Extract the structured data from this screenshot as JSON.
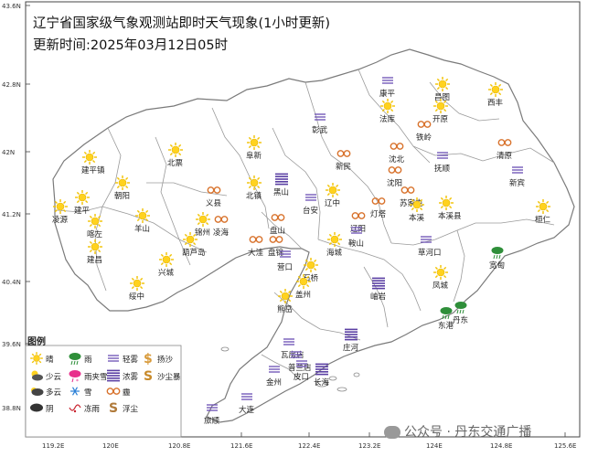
{
  "title": "辽宁省国家级气象观测站即时天气现象(1小时更新)",
  "update_time": "更新时间:2025年03月12日05时",
  "legend_title": "图例",
  "legend": [
    {
      "label": "晴",
      "icon": "sunny-icon"
    },
    {
      "label": "少云",
      "icon": "few-clouds-icon"
    },
    {
      "label": "多云",
      "icon": "partly-cloudy-icon"
    },
    {
      "label": "阴",
      "icon": "overcast-icon"
    },
    {
      "label": "雨",
      "icon": "rain-icon"
    },
    {
      "label": "雨夹雪",
      "icon": "sleet-icon"
    },
    {
      "label": "雪",
      "icon": "snow-icon"
    },
    {
      "label": "冻雨",
      "icon": "freezing-rain-icon"
    },
    {
      "label": "轻雾",
      "icon": "mist-icon"
    },
    {
      "label": "浓雾",
      "icon": "dense-fog-icon"
    },
    {
      "label": "霾",
      "icon": "haze-icon"
    },
    {
      "label": "浮尘",
      "icon": "floating-dust-icon"
    },
    {
      "label": "扬沙",
      "icon": "blowing-sand-icon"
    },
    {
      "label": "沙尘暴",
      "icon": "sandstorm-icon"
    }
  ],
  "lat_labels": [
    "43.6N",
    "42.8N",
    "42N",
    "41.2N",
    "40.4N",
    "39.6N",
    "38.8N"
  ],
  "lon_labels": [
    "119.2E",
    "120E",
    "120.8E",
    "121.6E",
    "122.4E",
    "123.2E",
    "124E",
    "124.8E",
    "125.6E"
  ],
  "stations": [
    {
      "name": "建平镇",
      "type": "sunny"
    },
    {
      "name": "朝阳",
      "type": "sunny"
    },
    {
      "name": "北票",
      "type": "sunny"
    },
    {
      "name": "阜新",
      "type": "sunny"
    },
    {
      "name": "彰武",
      "type": "mist"
    },
    {
      "name": "康平",
      "type": "mist"
    },
    {
      "name": "法库",
      "type": "sunny"
    },
    {
      "name": "昌图",
      "type": "sunny"
    },
    {
      "name": "开原",
      "type": "sunny"
    },
    {
      "name": "西丰",
      "type": "sunny"
    },
    {
      "name": "铁岭",
      "type": "haze"
    },
    {
      "name": "沈北",
      "type": "haze"
    },
    {
      "name": "清原",
      "type": "haze"
    },
    {
      "name": "抚顺",
      "type": "mist"
    },
    {
      "name": "新宾",
      "type": "mist"
    },
    {
      "name": "新民",
      "type": "haze"
    },
    {
      "name": "沈阳",
      "type": "haze"
    },
    {
      "name": "苏家屯",
      "type": "haze"
    },
    {
      "name": "灯塔",
      "type": "haze"
    },
    {
      "name": "本溪",
      "type": "sunny"
    },
    {
      "name": "本溪县",
      "type": "sunny"
    },
    {
      "name": "桓仁",
      "type": "sunny"
    },
    {
      "name": "辽阳",
      "type": "haze"
    },
    {
      "name": "辽中",
      "type": "sunny"
    },
    {
      "name": "台安",
      "type": "mist"
    },
    {
      "name": "黑山",
      "type": "dense-fog"
    },
    {
      "name": "义县",
      "type": "haze"
    },
    {
      "name": "北镇",
      "type": "sunny"
    },
    {
      "name": "建平",
      "type": "sunny"
    },
    {
      "name": "凌源",
      "type": "sunny"
    },
    {
      "name": "喀左",
      "type": "sunny"
    },
    {
      "name": "羊山",
      "type": "sunny"
    },
    {
      "name": "锦州",
      "type": "sunny"
    },
    {
      "name": "凌海",
      "type": "haze"
    },
    {
      "name": "盘山",
      "type": "haze"
    },
    {
      "name": "盘锦",
      "type": "haze"
    },
    {
      "name": "大洼",
      "type": "haze"
    },
    {
      "name": "鞍山",
      "type": "mist"
    },
    {
      "name": "海城",
      "type": "sunny"
    },
    {
      "name": "草河口",
      "type": "mist"
    },
    {
      "name": "宽甸",
      "type": "rain"
    },
    {
      "name": "葫芦岛",
      "type": "sunny"
    },
    {
      "name": "建昌",
      "type": "sunny"
    },
    {
      "name": "兴城",
      "type": "sunny"
    },
    {
      "name": "绥中",
      "type": "sunny"
    },
    {
      "name": "营口",
      "type": "mist"
    },
    {
      "name": "石桥",
      "type": "sunny"
    },
    {
      "name": "盖州",
      "type": "sunny"
    },
    {
      "name": "岫岩",
      "type": "dense-fog"
    },
    {
      "name": "凤城",
      "type": "sunny"
    },
    {
      "name": "熊岳",
      "type": "sunny"
    },
    {
      "name": "东港",
      "type": "rain"
    },
    {
      "name": "丹东",
      "type": "rain"
    },
    {
      "name": "庄河",
      "type": "dense-fog"
    },
    {
      "name": "瓦房店",
      "type": "mist"
    },
    {
      "name": "普兰店",
      "type": "mist"
    },
    {
      "name": "长海",
      "type": "dense-fog"
    },
    {
      "name": "金州",
      "type": "mist"
    },
    {
      "name": "大连",
      "type": "mist"
    },
    {
      "name": "旅顺",
      "type": "mist"
    },
    {
      "name": "皮口",
      "type": "mist"
    }
  ],
  "watermark": "公众号 · 丹东交通广播"
}
